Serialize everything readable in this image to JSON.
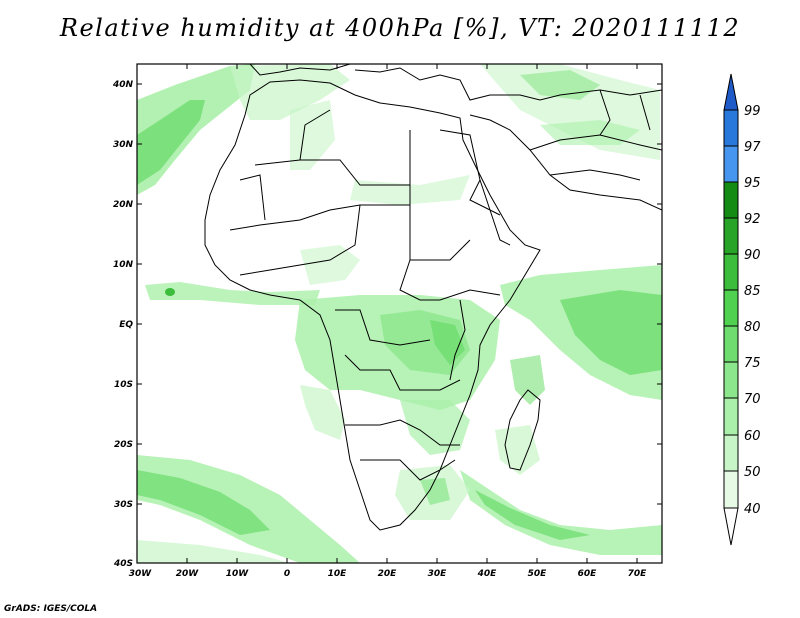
{
  "title": "Relative humidity at 400hPa [%], VT: 2020111112",
  "credit": "GrADS: IGES/COLA",
  "map": {
    "region": "Africa",
    "lon_ticks": [
      "30W",
      "20W",
      "10W",
      "0",
      "10E",
      "20E",
      "30E",
      "40E",
      "50E",
      "60E",
      "70E"
    ],
    "lat_ticks": [
      "40N",
      "30N",
      "20N",
      "10N",
      "EQ",
      "10S",
      "20S",
      "30S",
      "40S"
    ]
  },
  "colorbar": {
    "labels": [
      "40",
      "50",
      "60",
      "70",
      "75",
      "80",
      "85",
      "90",
      "92",
      "95",
      "97",
      "99"
    ],
    "colors": {
      "below_40": "#ffffff",
      "40_50": "#e6fae6",
      "50_60": "#c8f5c8",
      "60_70": "#aaf0aa",
      "70_75": "#8ce68c",
      "75_80": "#6edc6e",
      "80_85": "#50d250",
      "85_90": "#3cbe3c",
      "90_92": "#28a428",
      "92_95": "#148c14",
      "95_97": "#4696f0",
      "97_99": "#2878dc",
      "above_99": "#1e5ac8"
    }
  }
}
